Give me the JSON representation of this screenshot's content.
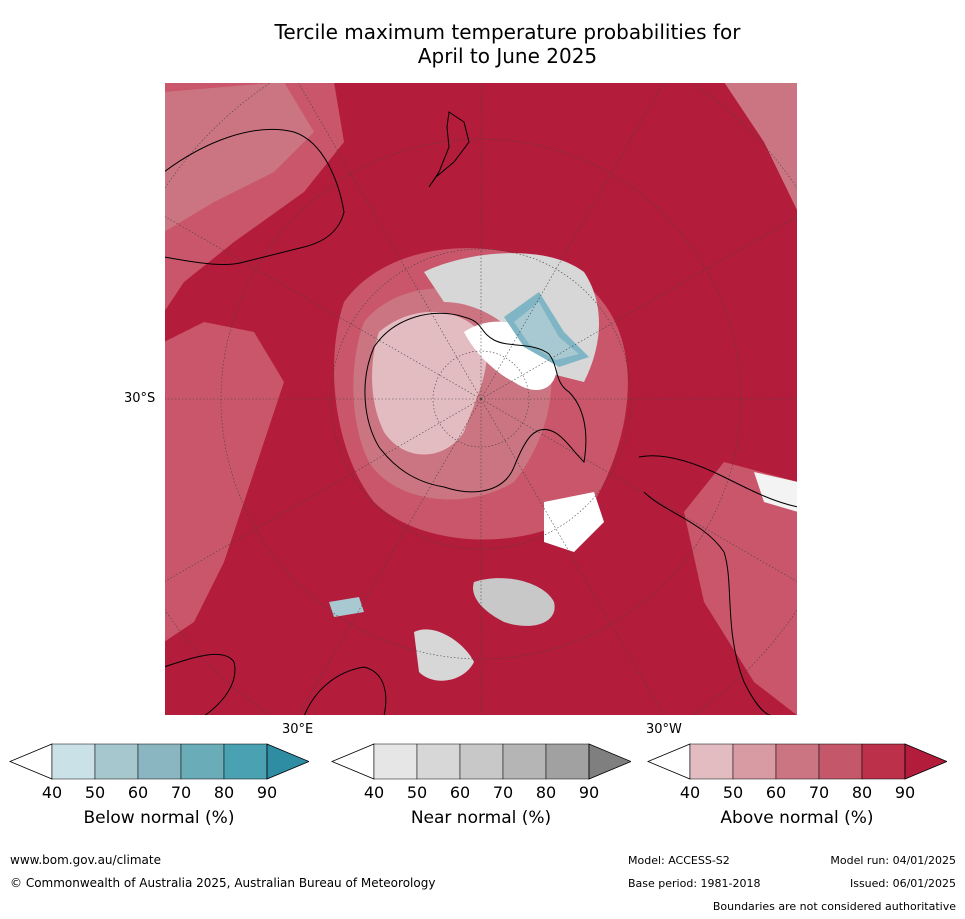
{
  "title_line1": "Tercile maximum temperature probabilities for",
  "title_line2": "April to June 2025",
  "map": {
    "labels": {
      "lat": "30°S",
      "lon_east": "30°E",
      "lon_west": "30°W"
    },
    "colors": {
      "above90": "#b41c3c",
      "above80": "#c4394f",
      "above70": "#c9566a",
      "above60": "#cc7582",
      "above50": "#d89aa3",
      "above40": "#e3bcc1",
      "near50": "#d7d7d7",
      "near60": "#c8c8c8",
      "below50": "#a8c9d1",
      "below60": "#7fb5c4",
      "land_outline": "#000000",
      "grid": "#444444"
    }
  },
  "colorbars": [
    {
      "label": "Below normal (%)",
      "ticks": [
        "40",
        "50",
        "60",
        "70",
        "80",
        "90"
      ],
      "colors": [
        "#ffffff",
        "#c9e1e7",
        "#a7c7ce",
        "#8ab6c2",
        "#6bacb9",
        "#4aa1b2",
        "#2e8ca3"
      ]
    },
    {
      "label": "Near normal (%)",
      "ticks": [
        "40",
        "50",
        "60",
        "70",
        "80",
        "90"
      ],
      "colors": [
        "#ffffff",
        "#e6e6e6",
        "#d7d7d7",
        "#c8c8c8",
        "#b5b5b5",
        "#a1a1a1",
        "#7f7f7f"
      ]
    },
    {
      "label": "Above normal (%)",
      "ticks": [
        "40",
        "50",
        "60",
        "70",
        "80",
        "90"
      ],
      "colors": [
        "#ffffff",
        "#e3bcc1",
        "#d89aa3",
        "#cc7582",
        "#c4586a",
        "#bc3049",
        "#b41c3c"
      ]
    }
  ],
  "footer": {
    "website": "www.bom.gov.au/climate",
    "copyright": "© Commonwealth of Australia 2025, Australian Bureau of Meteorology",
    "model": "Model: ACCESS-S2",
    "model_run": "Model run: 04/01/2025",
    "base_period": "Base period: 1981-2018",
    "issued": "Issued: 06/01/2025",
    "disclaimer": "Boundaries are not considered authoritative"
  }
}
